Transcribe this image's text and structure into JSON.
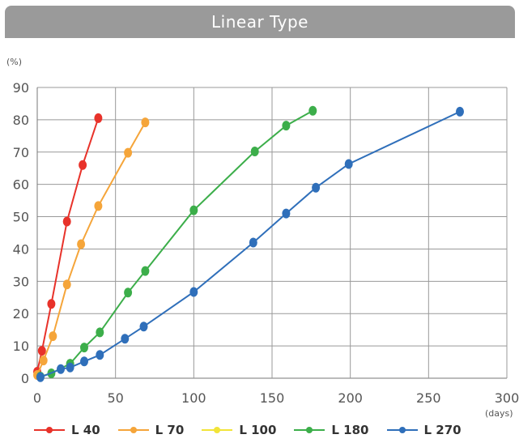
{
  "chart_data": {
    "type": "line",
    "title": "Linear Type",
    "ylabel": "(%)",
    "xlabel": "(days)",
    "xlim": [
      0,
      300
    ],
    "ylim": [
      0,
      90
    ],
    "xticks": [
      "0",
      "50",
      "100",
      "150",
      "200",
      "250",
      "300"
    ],
    "yticks": [
      "0",
      "10",
      "20",
      "30",
      "40",
      "50",
      "60",
      "70",
      "80",
      "90"
    ],
    "grid": true,
    "legend_position": "bottom",
    "series": [
      {
        "name": "L 40",
        "color": "#e8322a",
        "points": [
          [
            0,
            2
          ],
          [
            3,
            8.5
          ],
          [
            9,
            23
          ],
          [
            19,
            48.5
          ],
          [
            29,
            66
          ],
          [
            39,
            80.5
          ]
        ]
      },
      {
        "name": "L 70",
        "color": "#f5a53a",
        "points": [
          [
            0,
            1
          ],
          [
            4,
            5.5
          ],
          [
            10,
            13
          ],
          [
            19,
            29
          ],
          [
            28,
            41.5
          ],
          [
            39,
            53.3
          ],
          [
            58,
            69.8
          ],
          [
            69,
            79.2
          ]
        ]
      },
      {
        "name": "L 100",
        "color": "#f2e438",
        "points": []
      },
      {
        "name": "L 180",
        "color": "#3cae4a",
        "points": [
          [
            2,
            0.5
          ],
          [
            9,
            1.5
          ],
          [
            21,
            4.5
          ],
          [
            30,
            9.5
          ],
          [
            40,
            14.2
          ],
          [
            58,
            26.5
          ],
          [
            69,
            33.2
          ],
          [
            100,
            52
          ],
          [
            139,
            70.2
          ],
          [
            159,
            78.2
          ],
          [
            176,
            82.8
          ]
        ]
      },
      {
        "name": "L 270",
        "color": "#2f6fba",
        "points": [
          [
            2,
            0.3
          ],
          [
            15,
            2.8
          ],
          [
            21,
            3.3
          ],
          [
            30,
            5.2
          ],
          [
            40,
            7.2
          ],
          [
            56,
            12.2
          ],
          [
            68,
            16
          ],
          [
            100,
            26.7
          ],
          [
            138,
            42
          ],
          [
            159,
            51
          ],
          [
            178,
            59
          ],
          [
            199,
            66.3
          ],
          [
            270,
            82.5
          ]
        ]
      }
    ]
  }
}
